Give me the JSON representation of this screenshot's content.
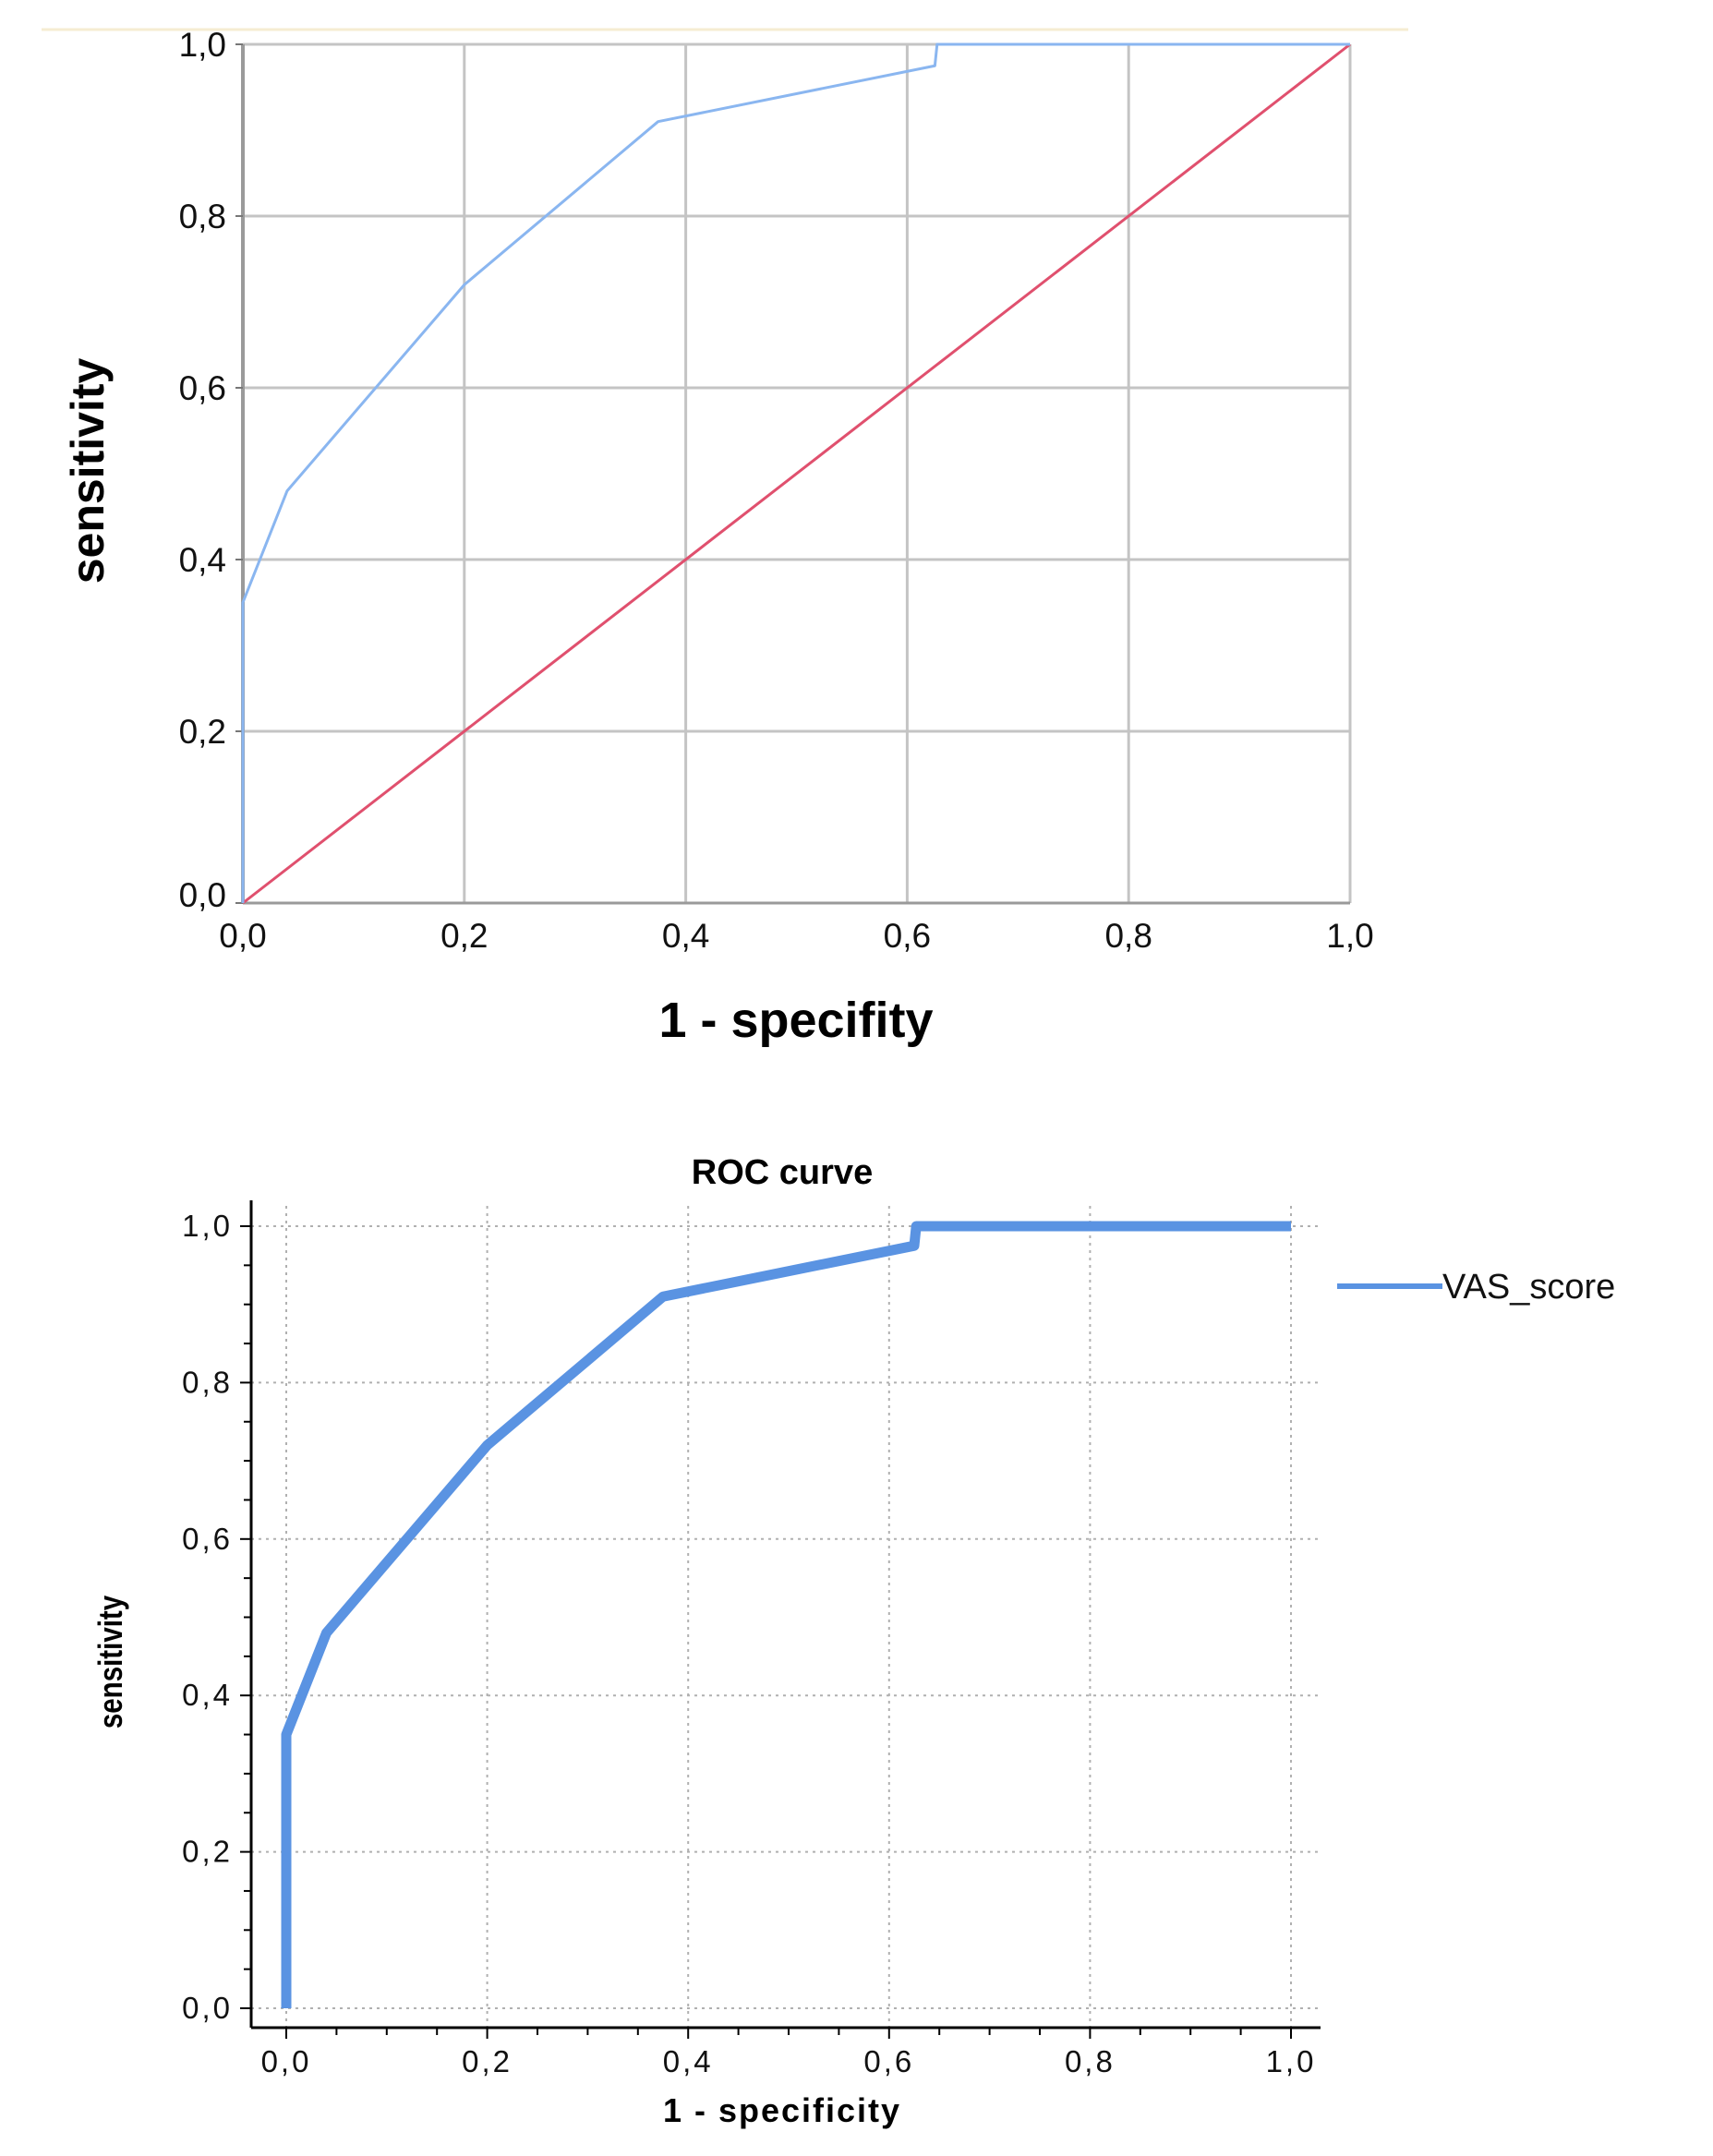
{
  "chart_data": [
    {
      "type": "line",
      "title": "",
      "xlabel": "1 - specifity",
      "ylabel": "sensitivity",
      "xlim": [
        0,
        1
      ],
      "ylim": [
        0,
        1
      ],
      "grid": true,
      "x_ticks": [
        "0,0",
        "0,2",
        "0,4",
        "0,6",
        "0,8",
        "1,0"
      ],
      "y_ticks": [
        "0,0",
        "0,2",
        "0,4",
        "0,6",
        "0,8",
        "1,0"
      ],
      "colors": {
        "curve": "#8ab6f0",
        "reference": "#e0506e",
        "grid": "#c4c4c4"
      },
      "series": [
        {
          "x": [
            0,
            0,
            0.04,
            0.2,
            0.375,
            0.625,
            0.625,
            0.627,
            1.0
          ],
          "y": [
            0,
            0.35,
            0.48,
            0.72,
            0.91,
            0.975,
            0.975,
            1.0,
            1.0
          ]
        },
        {
          "x": [
            0,
            1
          ],
          "y": [
            0,
            1
          ]
        }
      ]
    },
    {
      "type": "line",
      "title": "ROC curve",
      "xlabel": "1 - specificity",
      "ylabel": "sensitivity",
      "xlim": [
        0,
        1
      ],
      "ylim": [
        0,
        1
      ],
      "grid": true,
      "grid_style": "dotted",
      "legend": "right",
      "x_ticks": [
        "0,0",
        "0,2",
        "0,4",
        "0,6",
        "0,8",
        "1,0"
      ],
      "y_ticks": [
        "0,0",
        "0,2",
        "0,4",
        "0,6",
        "0,8",
        "1,0"
      ],
      "colors": {
        "curve": "#5a93e2",
        "grid": "#b0b0b0"
      },
      "series": [
        {
          "name": "VAS_score",
          "x": [
            0,
            0,
            0.04,
            0.2,
            0.375,
            0.625,
            0.625,
            0.627,
            1.0
          ],
          "y": [
            0,
            0.35,
            0.48,
            0.72,
            0.91,
            0.975,
            0.975,
            1.0,
            1.0
          ]
        }
      ]
    }
  ]
}
